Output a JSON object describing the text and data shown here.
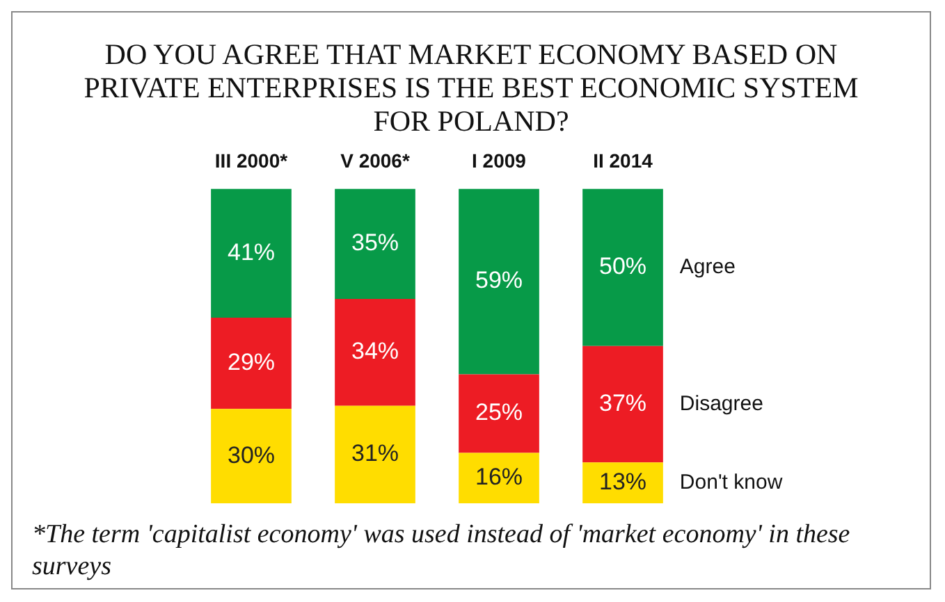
{
  "chart_data": {
    "type": "bar",
    "stacked": true,
    "title": "DO YOU AGREE THAT MARKET ECONOMY BASED ON PRIVATE ENTERPRISES IS THE BEST ECONOMIC SYSTEM FOR POLAND?",
    "categories": [
      "III 2000*",
      "V 2006*",
      "I 2009",
      "II 2014"
    ],
    "series": [
      {
        "name": "Don't know",
        "color": "#ffdd00",
        "values": [
          30,
          31,
          16,
          13
        ],
        "value_labels": [
          "30%",
          "31%",
          "16%",
          "13%"
        ]
      },
      {
        "name": "Disagree",
        "color": "#ed1c24",
        "values": [
          29,
          34,
          25,
          37
        ],
        "value_labels": [
          "29%",
          "34%",
          "25%",
          "37%"
        ]
      },
      {
        "name": "Agree",
        "color": "#079a48",
        "values": [
          41,
          35,
          59,
          50
        ],
        "value_labels": [
          "41%",
          "35%",
          "59%",
          "50%"
        ]
      }
    ],
    "legend": false,
    "annotations": [
      "*The term 'capitalist economy' was used instead of 'market economy' in these surveys"
    ]
  }
}
